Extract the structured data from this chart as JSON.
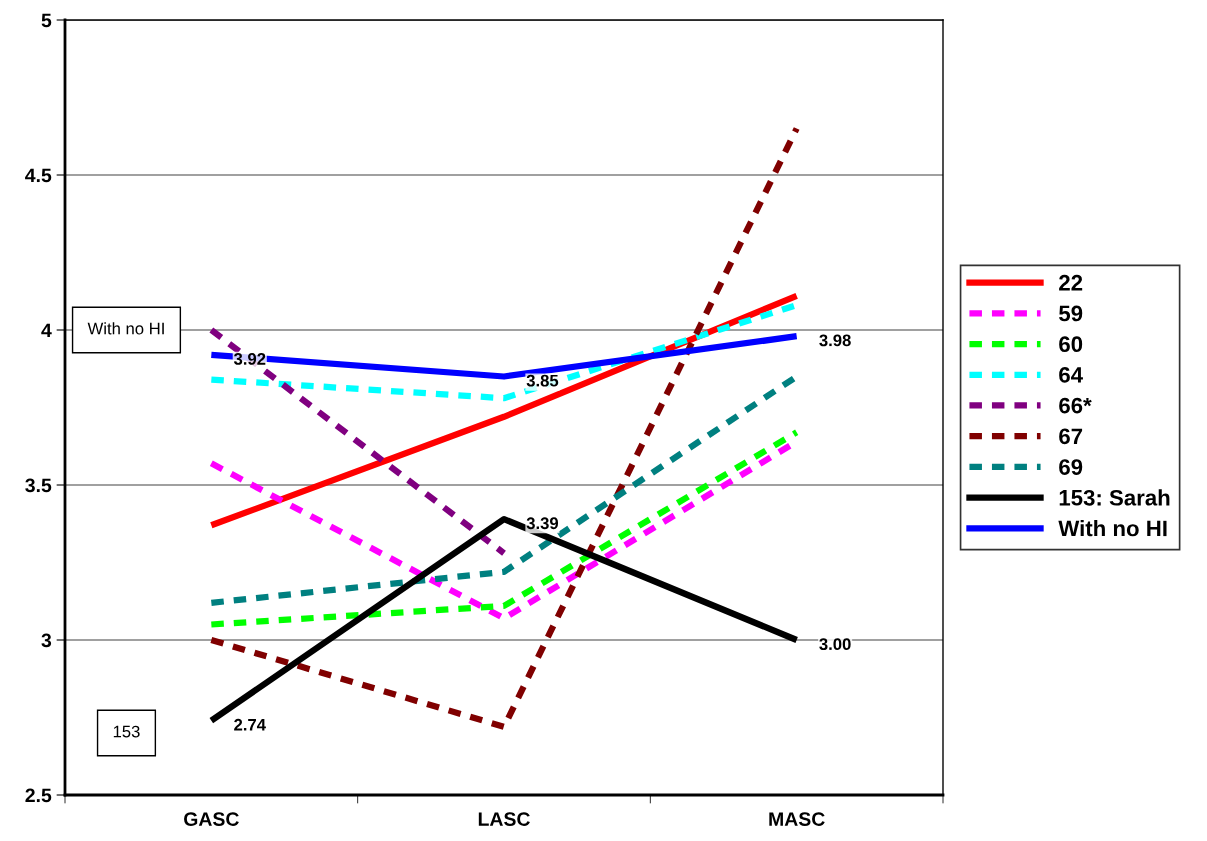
{
  "chart_data": {
    "type": "line",
    "categories": [
      "GASC",
      "LASC",
      "MASC"
    ],
    "series": [
      {
        "name": "22",
        "color": "#ff0000",
        "line_style": "solid",
        "values": [
          3.37,
          3.72,
          4.11
        ]
      },
      {
        "name": "59",
        "color": "#ff00ff",
        "line_style": "dashed",
        "values": [
          3.57,
          3.07,
          3.64
        ]
      },
      {
        "name": "60",
        "color": "#00ff00",
        "line_style": "dashed",
        "values": [
          3.05,
          3.11,
          3.67
        ]
      },
      {
        "name": "64",
        "color": "#00ffff",
        "line_style": "dashed",
        "values": [
          3.84,
          3.78,
          4.08
        ]
      },
      {
        "name": "66*",
        "color": "#800080",
        "line_style": "dashed",
        "values": [
          4.0,
          3.28,
          null
        ]
      },
      {
        "name": "67",
        "color": "#800000",
        "line_style": "dashed",
        "values": [
          3.0,
          2.72,
          4.65
        ]
      },
      {
        "name": "69",
        "color": "#008080",
        "line_style": "dashed",
        "values": [
          3.12,
          3.22,
          3.85
        ]
      },
      {
        "name": "153: Sarah",
        "color": "#000000",
        "line_style": "solid",
        "values": [
          2.74,
          3.39,
          3.0
        ],
        "value_labels": [
          "2.74",
          "3.39",
          "3.00"
        ]
      },
      {
        "name": "With no HI",
        "color": "#0000ff",
        "line_style": "solid",
        "values": [
          3.92,
          3.85,
          3.98
        ],
        "value_labels": [
          "3.92",
          "3.85",
          "3.98"
        ]
      }
    ],
    "ylim": [
      2.5,
      5
    ],
    "yticks": [
      2.5,
      3,
      3.5,
      4,
      4.5,
      5
    ],
    "grid": "y",
    "legend": "right",
    "marker": "none",
    "annotations": [
      "With no HI",
      "153"
    ]
  }
}
